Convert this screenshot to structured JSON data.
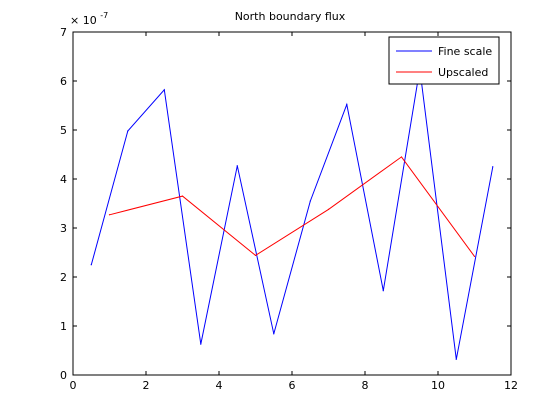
{
  "chart_data": {
    "type": "line",
    "title": "North boundary flux",
    "xlabel": "",
    "ylabel": "",
    "xlim": [
      0,
      12
    ],
    "ylim": [
      0,
      7
    ],
    "y_multiplier_label": "× 10",
    "y_multiplier_exponent": "-7",
    "grid": false,
    "legend_position": "top-right",
    "x_ticks": [
      "0",
      "2",
      "4",
      "6",
      "8",
      "10",
      "12"
    ],
    "y_ticks": [
      "0",
      "1",
      "2",
      "3",
      "4",
      "5",
      "6",
      "7"
    ],
    "series": [
      {
        "name": "Fine scale",
        "color": "#0000ff",
        "x": [
          0.5,
          1.5,
          2.5,
          3.5,
          4.5,
          5.5,
          6.5,
          7.5,
          8.5,
          9.5,
          10.5,
          11.5
        ],
        "y": [
          2.25,
          4.98,
          5.82,
          0.63,
          4.27,
          0.84,
          3.55,
          5.52,
          1.72,
          6.25,
          0.32,
          4.25
        ]
      },
      {
        "name": "Upscaled",
        "color": "#ff0000",
        "x": [
          1,
          3,
          5,
          7,
          9,
          11
        ],
        "y": [
          3.27,
          3.65,
          2.44,
          3.38,
          4.45,
          2.42
        ]
      }
    ]
  }
}
